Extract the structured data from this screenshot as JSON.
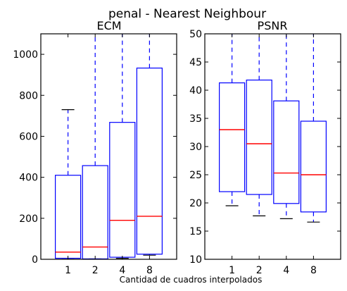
{
  "figure": {
    "suptitle": "penal - Nearest Neighbour",
    "xlabel": "Cantidad de cuadros interpolados"
  },
  "chart_data": [
    {
      "type": "box",
      "title": "ECM",
      "categories": [
        "1",
        "2",
        "4",
        "8"
      ],
      "ylim": [
        0,
        1100
      ],
      "yticks": [
        0,
        200,
        400,
        600,
        800,
        1000
      ],
      "colors": {
        "box": "#0000ff",
        "median": "#ff0000",
        "whisker": "#0000ff",
        "cap": "#000000"
      },
      "boxes": [
        {
          "whislo": 5,
          "q1": 5,
          "median": 35,
          "q3": 410,
          "whishi": 730
        },
        {
          "whislo": 2,
          "q1": 2,
          "median": 60,
          "q3": 457,
          "whishi": 1100
        },
        {
          "whislo": 5,
          "q1": 10,
          "median": 190,
          "q3": 668,
          "whishi": 1100
        },
        {
          "whislo": 20,
          "q1": 25,
          "median": 210,
          "q3": 933,
          "whishi": 1100
        }
      ]
    },
    {
      "type": "box",
      "title": "PSNR",
      "categories": [
        "1",
        "2",
        "4",
        "8"
      ],
      "ylim": [
        10,
        50
      ],
      "yticks": [
        10,
        15,
        20,
        25,
        30,
        35,
        40,
        45,
        50
      ],
      "colors": {
        "box": "#0000ff",
        "median": "#ff0000",
        "whisker": "#0000ff",
        "cap": "#000000"
      },
      "boxes": [
        {
          "whislo": 19.5,
          "q1": 22.0,
          "median": 33.0,
          "q3": 41.3,
          "whishi": 50
        },
        {
          "whislo": 17.7,
          "q1": 21.5,
          "median": 30.5,
          "q3": 41.8,
          "whishi": 50
        },
        {
          "whislo": 17.2,
          "q1": 19.9,
          "median": 25.3,
          "q3": 38.1,
          "whishi": 50
        },
        {
          "whislo": 16.6,
          "q1": 18.4,
          "median": 25.0,
          "q3": 34.5,
          "whishi": 50
        }
      ]
    }
  ]
}
